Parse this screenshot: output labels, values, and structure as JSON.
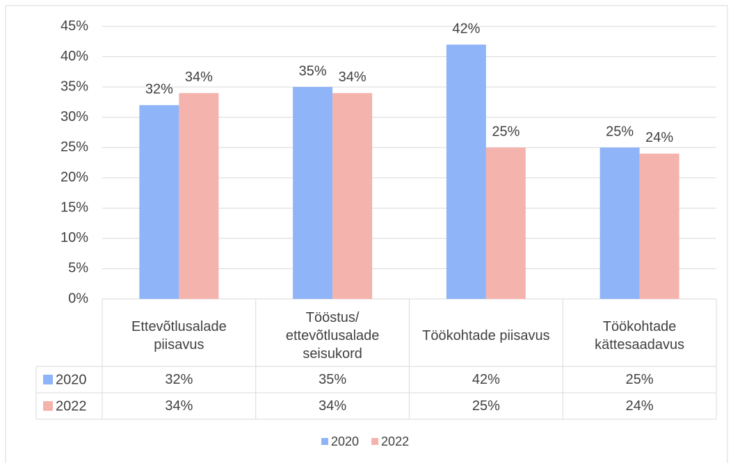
{
  "chart_data": {
    "type": "bar",
    "categories": [
      "Ettevõtlusalade piisavus",
      "Tööstus/ ettevõtlusalade seisukord",
      "Töökohtade piisavus",
      "Töökohtade kättesaadavus"
    ],
    "series": [
      {
        "name": "2020",
        "color": "#8fb4f8",
        "values": [
          32,
          35,
          42,
          25
        ],
        "value_labels": [
          "32%",
          "35%",
          "42%",
          "25%"
        ]
      },
      {
        "name": "2022",
        "color": "#f5b3ae",
        "values": [
          34,
          34,
          25,
          24
        ],
        "value_labels": [
          "34%",
          "34%",
          "25%",
          "24%"
        ]
      }
    ],
    "ylim": [
      0,
      45
    ],
    "yticks": [
      {
        "value": 0,
        "label": "0%"
      },
      {
        "value": 5,
        "label": "5%"
      },
      {
        "value": 10,
        "label": "10%"
      },
      {
        "value": 15,
        "label": "15%"
      },
      {
        "value": 20,
        "label": "20%"
      },
      {
        "value": 25,
        "label": "25%"
      },
      {
        "value": 30,
        "label": "30%"
      },
      {
        "value": 35,
        "label": "35%"
      },
      {
        "value": 40,
        "label": "40%"
      },
      {
        "value": 45,
        "label": "45%"
      }
    ],
    "grid": true,
    "legend": "bottom",
    "data_table": true
  }
}
